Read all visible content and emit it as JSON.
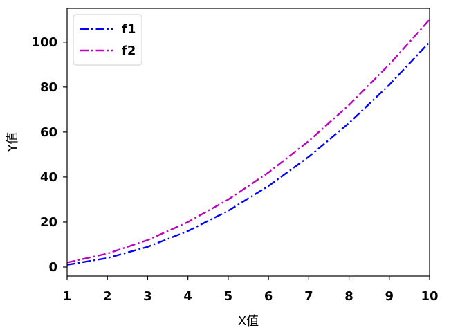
{
  "chart_data": {
    "type": "line",
    "xlabel": "X值",
    "ylabel": "Y值",
    "x": [
      1,
      2,
      3,
      4,
      5,
      6,
      7,
      8,
      9,
      10
    ],
    "xlim": [
      1,
      10
    ],
    "ylim": [
      -4,
      115
    ],
    "xticks": [
      1,
      2,
      3,
      4,
      5,
      6,
      7,
      8,
      9,
      10
    ],
    "yticks": [
      0,
      20,
      40,
      60,
      80,
      100
    ],
    "grid": false,
    "legend_position": "upper-left",
    "series": [
      {
        "name": "f1",
        "color": "#0000ff",
        "linestyle": "dash-dot",
        "values": [
          1,
          4,
          9,
          16,
          25,
          36,
          49,
          64,
          81,
          100
        ]
      },
      {
        "name": "f2",
        "color": "#c000c0",
        "linestyle": "dash-dot",
        "values": [
          2,
          6,
          12,
          20,
          30,
          42,
          56,
          72,
          90,
          110
        ]
      }
    ]
  }
}
